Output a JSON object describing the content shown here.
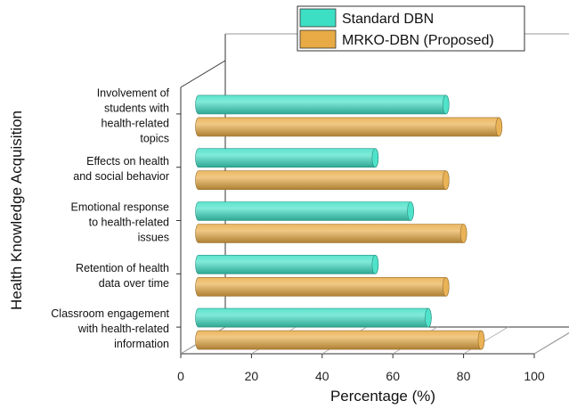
{
  "chart_data": {
    "type": "bar",
    "orientation": "horizontal",
    "style": "3d-cylinder",
    "categories": [
      [
        "Involvement of",
        "students with",
        "health-related",
        "topics"
      ],
      [
        "Effects on health",
        "and social behavior"
      ],
      [
        "Emotional response",
        "to health-related",
        "issues"
      ],
      [
        "Retention of health",
        "data over time"
      ],
      [
        "Classroom engagement",
        "with health-related",
        "information"
      ]
    ],
    "series": [
      {
        "name": "Standard DBN",
        "values": [
          75,
          55,
          65,
          55,
          70
        ],
        "color": "#3ddfc4"
      },
      {
        "name": "MRKO-DBN (Proposed)",
        "values": [
          90,
          75,
          80,
          75,
          85
        ],
        "color": "#e8aa44"
      }
    ],
    "xlabel": "Percentage (%)",
    "ylabel": "Health Knowledge Acquisition",
    "xlim": [
      0,
      100
    ],
    "xticks": [
      "0",
      "20",
      "40",
      "60",
      "80",
      "100"
    ],
    "legend_position": "top-right",
    "grid": false
  }
}
